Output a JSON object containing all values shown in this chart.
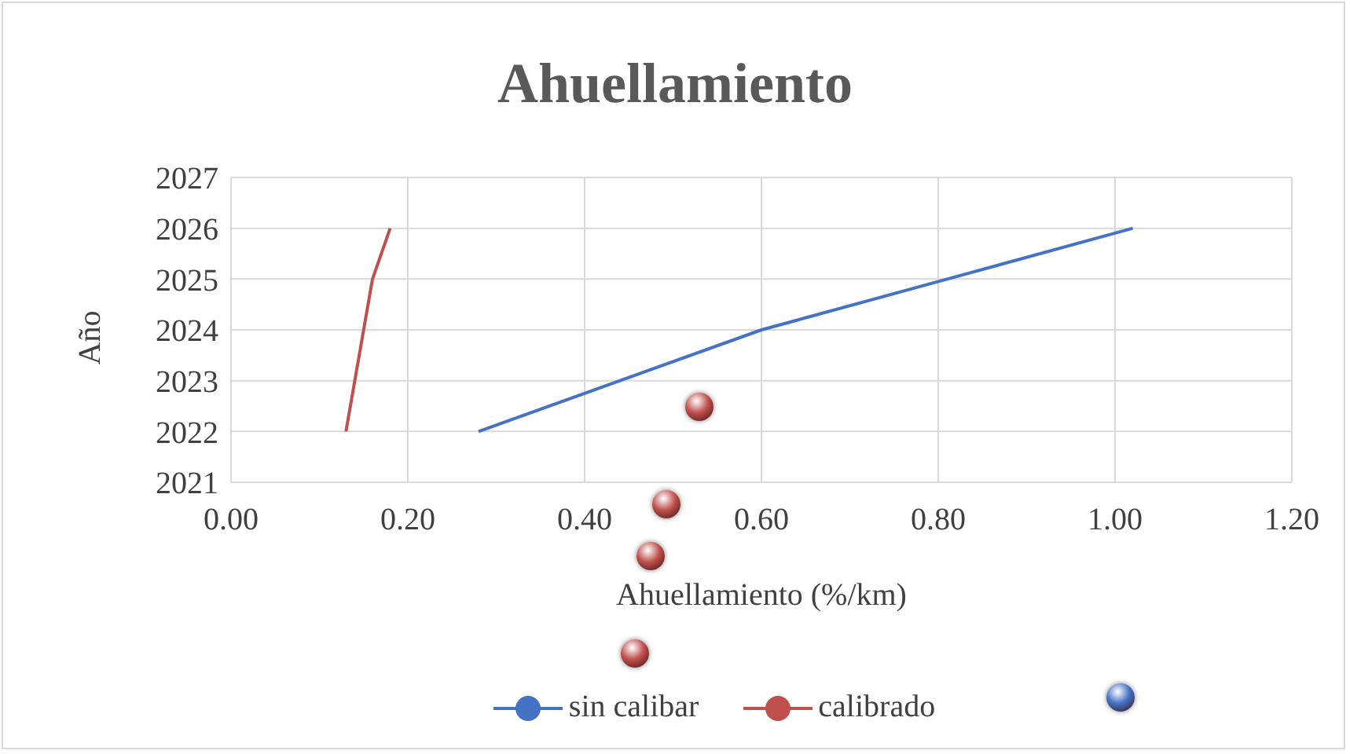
{
  "chart_data": {
    "type": "line",
    "title": "Ahuellamiento",
    "xlabel": "Ahuellamiento (%/km)",
    "ylabel": "Año",
    "series": [
      {
        "name": "sin calibar",
        "color": "#4472c4",
        "x": [
          0.28,
          0.44,
          0.6,
          0.81,
          1.02
        ],
        "values": [
          2022,
          2023,
          2024,
          2025,
          2026
        ]
      },
      {
        "name": "calibrado",
        "color": "#c0504d",
        "x": [
          0.13,
          0.16,
          0.18
        ],
        "values": [
          2022,
          2025,
          2026
        ]
      }
    ],
    "xlim": [
      0,
      1.2
    ],
    "xticks": [
      {
        "value": 0,
        "label": "0.00"
      },
      {
        "value": 0.2,
        "label": "0.20"
      },
      {
        "value": 0.4,
        "label": "0.40"
      },
      {
        "value": 0.6,
        "label": "0.60"
      },
      {
        "value": 0.8,
        "label": "0.80"
      },
      {
        "value": 1,
        "label": "1.00"
      },
      {
        "value": 1.2,
        "label": "1.20"
      }
    ],
    "ylim": [
      2021,
      2027
    ],
    "yticks": [
      2021,
      2022,
      2023,
      2024,
      2025,
      2026,
      2027
    ],
    "grid": true,
    "legend": "bottom",
    "marker": "none",
    "line_style": "solid"
  }
}
